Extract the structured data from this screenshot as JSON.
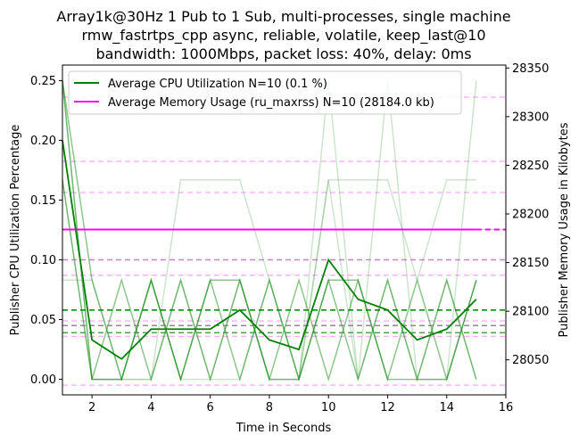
{
  "chart_data": {
    "type": "line",
    "title_lines": [
      "Array1k@30Hz 1 Pub to 1 Sub, multi-processes, single machine",
      "rmw_fastrtps_cpp async, reliable, volatile, keep_last@10",
      "bandwidth: 1000Mbps, packet loss: 40%, delay: 0ms"
    ],
    "xlabel": "Time in Seconds",
    "ylabel_left": "Publisher CPU Utilization Percentage",
    "ylabel_right": "Publisher Memory Usage in Kilobytes",
    "xlim": [
      1,
      16
    ],
    "ylim_left": [
      -0.013,
      0.263
    ],
    "ylim_right": [
      28014,
      28353
    ],
    "xticks": [
      2,
      4,
      6,
      8,
      10,
      12,
      14,
      16
    ],
    "yticks_left": [
      "0.00",
      "0.05",
      "0.10",
      "0.15",
      "0.20",
      "0.25"
    ],
    "yticks_right": [
      "28050",
      "28100",
      "28150",
      "28200",
      "28250",
      "28300",
      "28350"
    ],
    "legend_position": "upper-left",
    "legend": [
      {
        "label": "Average CPU Utilization N=10 (0.1 %)",
        "color": "#008000"
      },
      {
        "label": "Average Memory Usage (ru_maxrss) N=10 (28184.0 kb)",
        "color": "#ff00ff"
      }
    ],
    "x": [
      1,
      2,
      3,
      4,
      5,
      6,
      7,
      8,
      9,
      10,
      11,
      12,
      13,
      14,
      15
    ],
    "cpu_average": {
      "name": "Average CPU Utilization N=10 (0.1 %)",
      "color": "#008000",
      "values": [
        0.2,
        0.033,
        0.017,
        0.042,
        0.042,
        0.042,
        0.058,
        0.033,
        0.025,
        0.1,
        0.067,
        0.058,
        0.033,
        0.042,
        0.067
      ]
    },
    "cpu_runs": [
      [
        0.25,
        0.083,
        0.0,
        0.083,
        0.0,
        0.083,
        0.0,
        0.083,
        0.0,
        0.083,
        0.0,
        0.083,
        0.0,
        0.083,
        0.0
      ],
      [
        0.167,
        0.0,
        0.083,
        0.0,
        0.083,
        0.0,
        0.083,
        0.0,
        0.0,
        0.083,
        0.083,
        0.0,
        0.0,
        0.0,
        0.083
      ],
      [
        0.25,
        0.0,
        0.0,
        0.083,
        0.0,
        0.083,
        0.083,
        0.0,
        0.083,
        0.0,
        0.083,
        0.0,
        0.083,
        0.0,
        0.083
      ],
      [
        0.083,
        0.083,
        0.0,
        0.0,
        0.167,
        0.167,
        0.167,
        0.083,
        0.0,
        0.167,
        0.167,
        0.167,
        0.083,
        0.167,
        0.167
      ],
      [
        0.25,
        0.0,
        0.0,
        0.0,
        0.083,
        0.0,
        0.083,
        0.0,
        0.0,
        0.25,
        0.0,
        0.25,
        0.0,
        0.0,
        0.25
      ],
      [
        0.167,
        0.0,
        0.0,
        0.083,
        0.0,
        0.0,
        0.0,
        0.083,
        0.0,
        0.167,
        0.0,
        0.083,
        0.0,
        0.083,
        0.0
      ]
    ],
    "cpu_hlines": [
      {
        "value": 0.058,
        "color": "#008000",
        "opacity": 1.0
      },
      {
        "value": 0.045,
        "color": "#808080",
        "opacity": 0.9
      },
      {
        "value": 0.039,
        "color": "#3a9a3a",
        "opacity": 0.9
      },
      {
        "value": 0.1,
        "color": "#c060c0",
        "opacity": 0.8
      }
    ],
    "memory_average": {
      "name": "Average Memory Usage (ru_maxrss) N=10 (28184.0 kb)",
      "color": "#ff00ff",
      "value": 28184.0
    },
    "memory_hlines": [
      28024,
      28320,
      28254,
      28222,
      28184,
      28137,
      28090,
      28074
    ]
  }
}
